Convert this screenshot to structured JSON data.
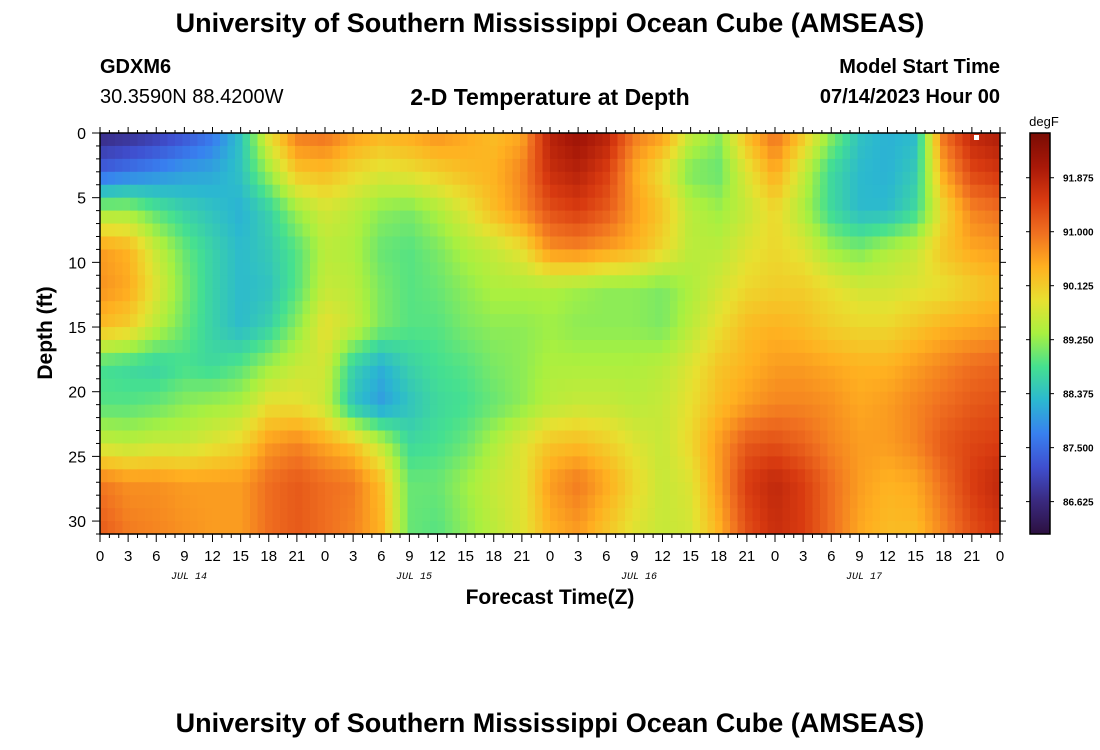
{
  "page": {
    "title": "University of Southern Mississippi Ocean Cube (AMSEAS)",
    "title_repeat": "University of Southern Mississippi Ocean Cube (AMSEAS)",
    "station": "GDXM6",
    "coords": "30.3590N  88.4200W",
    "subtitle": "2-D Temperature at Depth",
    "start_label": "Model Start Time",
    "start_value": "07/14/2023 Hour 00"
  },
  "chart_data": {
    "type": "heatmap",
    "title": "2-D Temperature at Depth",
    "xlabel": "Forecast Time(Z)",
    "ylabel": "Depth (ft)",
    "x_range_hours": [
      0,
      96
    ],
    "y_range_ft": [
      0,
      31
    ],
    "x_tick_labels": [
      "0",
      "3",
      "6",
      "9",
      "12",
      "15",
      "18",
      "21",
      "0",
      "3",
      "6",
      "9",
      "12",
      "15",
      "18",
      "21",
      "0",
      "3",
      "6",
      "9",
      "12",
      "15",
      "18",
      "21",
      "0",
      "3",
      "6",
      "9",
      "12",
      "15",
      "18",
      "21",
      "0"
    ],
    "date_labels": [
      "JUL 14",
      "JUL 15",
      "JUL 16",
      "JUL 17"
    ],
    "y_ticks": [
      0,
      5,
      10,
      15,
      20,
      25,
      30
    ],
    "colorbar": {
      "unit": "degF",
      "min": 86.1,
      "max": 92.6,
      "ticks": [
        "91.875",
        "91.000",
        "90.125",
        "89.250",
        "88.375",
        "87.500",
        "86.625"
      ],
      "colors": [
        "#2c1040",
        "#3a2a80",
        "#3f4fcf",
        "#3880f0",
        "#2bb8d0",
        "#45e090",
        "#a8f040",
        "#e8e030",
        "#ffb020",
        "#f07020",
        "#d83a10",
        "#a81808",
        "#7a0c04"
      ]
    },
    "field": {
      "times_h": [
        0,
        3,
        6,
        9,
        12,
        15,
        18,
        21,
        24,
        27,
        30,
        33,
        36,
        39,
        42,
        45,
        48,
        51,
        54,
        57,
        60,
        63,
        66,
        69,
        72,
        75,
        78,
        81,
        84,
        87,
        90,
        93,
        96
      ],
      "depths_ft": [
        0,
        3,
        6,
        9,
        12,
        15,
        18,
        21,
        24,
        27,
        31
      ],
      "temps_degF": [
        [
          86.6,
          86.7,
          86.9,
          87.2,
          87.6,
          88.4,
          89.9,
          90.9,
          91.0,
          90.6,
          90.4,
          90.5,
          90.7,
          90.5,
          90.3,
          90.5,
          91.9,
          92.2,
          91.9,
          90.9,
          90.6,
          89.6,
          89.2,
          90.3,
          91.0,
          90.2,
          89.2,
          88.4,
          88.2,
          88.3,
          91.0,
          91.8,
          92.0
        ],
        [
          87.4,
          87.6,
          87.8,
          88.0,
          88.1,
          88.4,
          89.3,
          90.2,
          90.3,
          90.0,
          89.8,
          89.9,
          90.1,
          90.3,
          90.4,
          90.8,
          91.7,
          91.9,
          91.5,
          90.5,
          89.9,
          89.1,
          89.0,
          89.8,
          90.5,
          89.6,
          88.7,
          88.3,
          88.2,
          88.5,
          90.5,
          91.4,
          91.6
        ],
        [
          89.3,
          89.3,
          88.9,
          88.6,
          88.4,
          88.2,
          88.6,
          89.3,
          89.7,
          89.5,
          89.2,
          89.1,
          89.4,
          89.8,
          90.3,
          90.7,
          91.3,
          91.5,
          91.2,
          90.6,
          90.2,
          89.5,
          89.3,
          89.6,
          90.0,
          89.4,
          88.7,
          88.3,
          88.3,
          88.7,
          90.0,
          90.8,
          91.0
        ],
        [
          90.6,
          90.4,
          89.6,
          89.0,
          88.6,
          88.3,
          88.5,
          88.9,
          89.5,
          89.4,
          89.0,
          88.9,
          89.1,
          89.4,
          89.6,
          89.9,
          90.7,
          90.8,
          90.6,
          90.4,
          90.0,
          89.5,
          89.5,
          89.8,
          90.0,
          89.8,
          89.3,
          89.1,
          89.4,
          89.6,
          90.2,
          90.5,
          90.6
        ],
        [
          90.7,
          90.5,
          89.8,
          89.1,
          88.6,
          88.3,
          88.4,
          88.9,
          89.6,
          89.5,
          89.1,
          88.9,
          89.0,
          89.2,
          89.4,
          89.4,
          89.4,
          89.3,
          89.2,
          89.2,
          89.1,
          89.4,
          89.7,
          90.0,
          90.1,
          90.1,
          89.9,
          89.7,
          89.7,
          89.8,
          89.9,
          90.1,
          90.3
        ],
        [
          90.3,
          90.1,
          89.5,
          89.0,
          88.6,
          88.3,
          88.6,
          89.2,
          89.9,
          89.6,
          89.1,
          88.9,
          88.9,
          89.1,
          89.2,
          89.2,
          89.3,
          89.2,
          89.2,
          89.2,
          89.1,
          89.5,
          89.9,
          90.3,
          90.4,
          90.3,
          90.1,
          90.0,
          90.0,
          90.2,
          90.4,
          90.5,
          90.6
        ],
        [
          88.8,
          88.7,
          88.6,
          88.8,
          88.7,
          88.9,
          89.3,
          89.6,
          89.7,
          88.6,
          88.2,
          88.6,
          88.8,
          88.9,
          89.1,
          89.2,
          89.4,
          89.4,
          89.4,
          89.4,
          89.5,
          89.8,
          90.2,
          90.4,
          90.6,
          90.6,
          90.5,
          90.4,
          90.4,
          90.6,
          90.8,
          91.0,
          91.1
        ],
        [
          88.9,
          88.9,
          89.0,
          89.2,
          89.3,
          89.4,
          89.9,
          89.9,
          89.6,
          88.4,
          88.0,
          88.4,
          88.7,
          88.8,
          89.0,
          89.2,
          89.5,
          89.6,
          89.6,
          89.5,
          89.6,
          89.9,
          90.3,
          90.6,
          90.8,
          90.8,
          90.7,
          90.5,
          90.6,
          90.8,
          91.0,
          91.2,
          91.3
        ],
        [
          89.6,
          89.5,
          89.6,
          89.6,
          89.8,
          90.0,
          90.6,
          90.8,
          90.5,
          90.2,
          89.5,
          88.7,
          88.8,
          89.0,
          89.4,
          89.8,
          90.2,
          90.3,
          90.1,
          89.8,
          89.6,
          90.0,
          90.6,
          91.2,
          91.3,
          91.1,
          90.8,
          90.6,
          90.6,
          90.8,
          91.2,
          91.4,
          91.5
        ],
        [
          90.9,
          90.7,
          90.7,
          90.6,
          90.6,
          90.6,
          91.0,
          91.2,
          91.0,
          90.9,
          90.3,
          89.0,
          89.0,
          89.3,
          89.6,
          89.8,
          90.6,
          90.9,
          90.5,
          90.0,
          89.6,
          89.8,
          90.6,
          91.5,
          91.8,
          91.5,
          91.0,
          90.6,
          90.4,
          90.5,
          91.0,
          91.5,
          91.8
        ],
        [
          91.2,
          90.9,
          90.8,
          90.7,
          90.6,
          90.6,
          91.0,
          91.2,
          91.0,
          90.8,
          90.4,
          89.0,
          88.9,
          89.2,
          89.5,
          89.8,
          90.4,
          90.6,
          90.2,
          89.8,
          89.6,
          89.7,
          90.4,
          91.3,
          91.7,
          91.5,
          91.0,
          90.5,
          90.3,
          90.3,
          90.8,
          91.3,
          91.6
        ]
      ]
    }
  }
}
